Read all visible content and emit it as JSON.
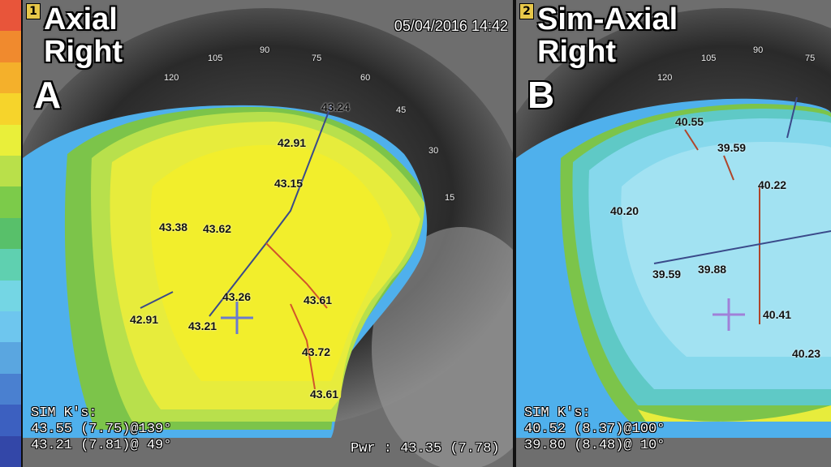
{
  "color_scale": [
    "#e8553a",
    "#f08a2e",
    "#f4b02b",
    "#f6d42b",
    "#e9ef3a",
    "#b9e04a",
    "#7ccb4a",
    "#58c06a",
    "#5fd0b0",
    "#74d6e4",
    "#6ec6ee",
    "#5aa6e0",
    "#4a80d0",
    "#3c60c0",
    "#3347a8"
  ],
  "panel_a": {
    "number": "1",
    "title_line1": "Axial",
    "title_line2": "Right",
    "letter": "A",
    "datetime": "05/04/2016 14:42",
    "degree_labels": [
      "105",
      "90",
      "75",
      "120",
      "60",
      "45",
      "30",
      "15"
    ],
    "k_values": [
      "42.91",
      "43.15",
      "43.38",
      "43.62",
      "43.26",
      "43.61",
      "42.91",
      "43.21",
      "43.72",
      "43.61",
      "43.24"
    ],
    "sim_k_label": "SIM K's:",
    "sim_k_line1": "43.55 (7.75)@139°",
    "sim_k_line2": "43.21 (7.81)@ 49°",
    "pwr_line": "Pwr : 43.35 (7.78)"
  },
  "panel_b": {
    "number": "2",
    "title_line1": "Sim-Axial",
    "title_line2": "Right",
    "letter": "B",
    "degree_labels": [
      "105",
      "90",
      "75",
      "120"
    ],
    "k_values": [
      "40.55",
      "39.59",
      "40.20",
      "40.22",
      "39.59",
      "39.88",
      "40.41",
      "40.23"
    ],
    "sim_k_label": "SIM K's:",
    "sim_k_line1": "40.52 (8.37)@100°",
    "sim_k_line2": "39.80 (8.48)@ 10°"
  }
}
